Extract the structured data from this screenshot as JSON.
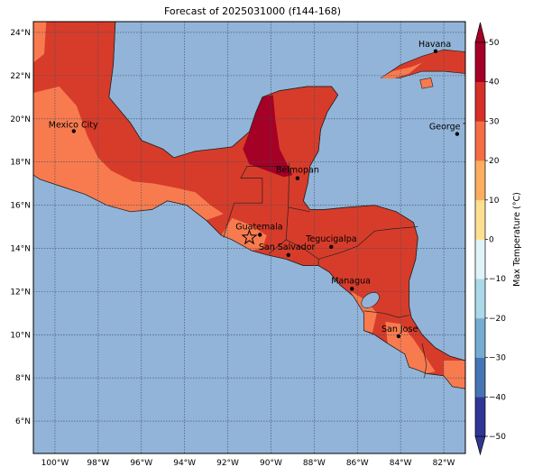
{
  "title": "Forecast of 2025031000 (f144-168)",
  "map": {
    "lon_range": [
      -101,
      -81
    ],
    "lat_range": [
      4.5,
      24.5
    ],
    "lon_ticks": [
      {
        "value": -100,
        "label": "100°W"
      },
      {
        "value": -98,
        "label": "98°W"
      },
      {
        "value": -96,
        "label": "96°W"
      },
      {
        "value": -94,
        "label": "94°W"
      },
      {
        "value": -92,
        "label": "92°W"
      },
      {
        "value": -90,
        "label": "90°W"
      },
      {
        "value": -88,
        "label": "88°W"
      },
      {
        "value": -86,
        "label": "86°W"
      },
      {
        "value": -84,
        "label": "84°W"
      },
      {
        "value": -82,
        "label": "82°W"
      }
    ],
    "lat_ticks": [
      {
        "value": 6,
        "label": "6°N"
      },
      {
        "value": 8,
        "label": "8°N"
      },
      {
        "value": 10,
        "label": "10°N"
      },
      {
        "value": 12,
        "label": "12°N"
      },
      {
        "value": 14,
        "label": "14°N"
      },
      {
        "value": 16,
        "label": "16°N"
      },
      {
        "value": 18,
        "label": "18°N"
      },
      {
        "value": 20,
        "label": "20°N"
      },
      {
        "value": 22,
        "label": "22°N"
      },
      {
        "value": 24,
        "label": "24°N"
      }
    ],
    "colors": {
      "ocean": "#92b4d8",
      "land_30_40": "#d73c2a",
      "land_20_30": "#f77b4f",
      "land_40_50": "#a50026",
      "land_10_20": "#fdae61"
    },
    "cities": [
      {
        "name": "Mexico City",
        "lon": -99.13,
        "lat": 19.43
      },
      {
        "name": "Havana",
        "lon": -82.38,
        "lat": 23.13
      },
      {
        "name": "George Town",
        "label": "George Tov",
        "lon": -81.38,
        "lat": 19.3
      },
      {
        "name": "Belmopan",
        "lon": -88.77,
        "lat": 17.25
      },
      {
        "name": "Guatemala",
        "lon": -90.51,
        "lat": 14.63
      },
      {
        "name": "Tegucigalpa",
        "lon": -87.21,
        "lat": 14.07
      },
      {
        "name": "San Salvador",
        "lon": -89.19,
        "lat": 13.69
      },
      {
        "name": "Managua",
        "lon": -86.25,
        "lat": 12.13
      },
      {
        "name": "San Jose",
        "lon": -84.09,
        "lat": 9.93
      }
    ],
    "star": {
      "name": "forecast-point",
      "lon": -91.0,
      "lat": 14.5
    }
  },
  "colorbar": {
    "label": "Max Temperature (°C)",
    "ticks": [
      "−50",
      "−40",
      "−30",
      "−20",
      "−10",
      "0",
      "10",
      "20",
      "30",
      "40",
      "50"
    ],
    "colors": [
      "#313695",
      "#4575b4",
      "#74add1",
      "#abd9e9",
      "#e0f3f8",
      "#ffffbf",
      "#fee090",
      "#fdae61",
      "#f46d43",
      "#d73027",
      "#a50026"
    ]
  }
}
